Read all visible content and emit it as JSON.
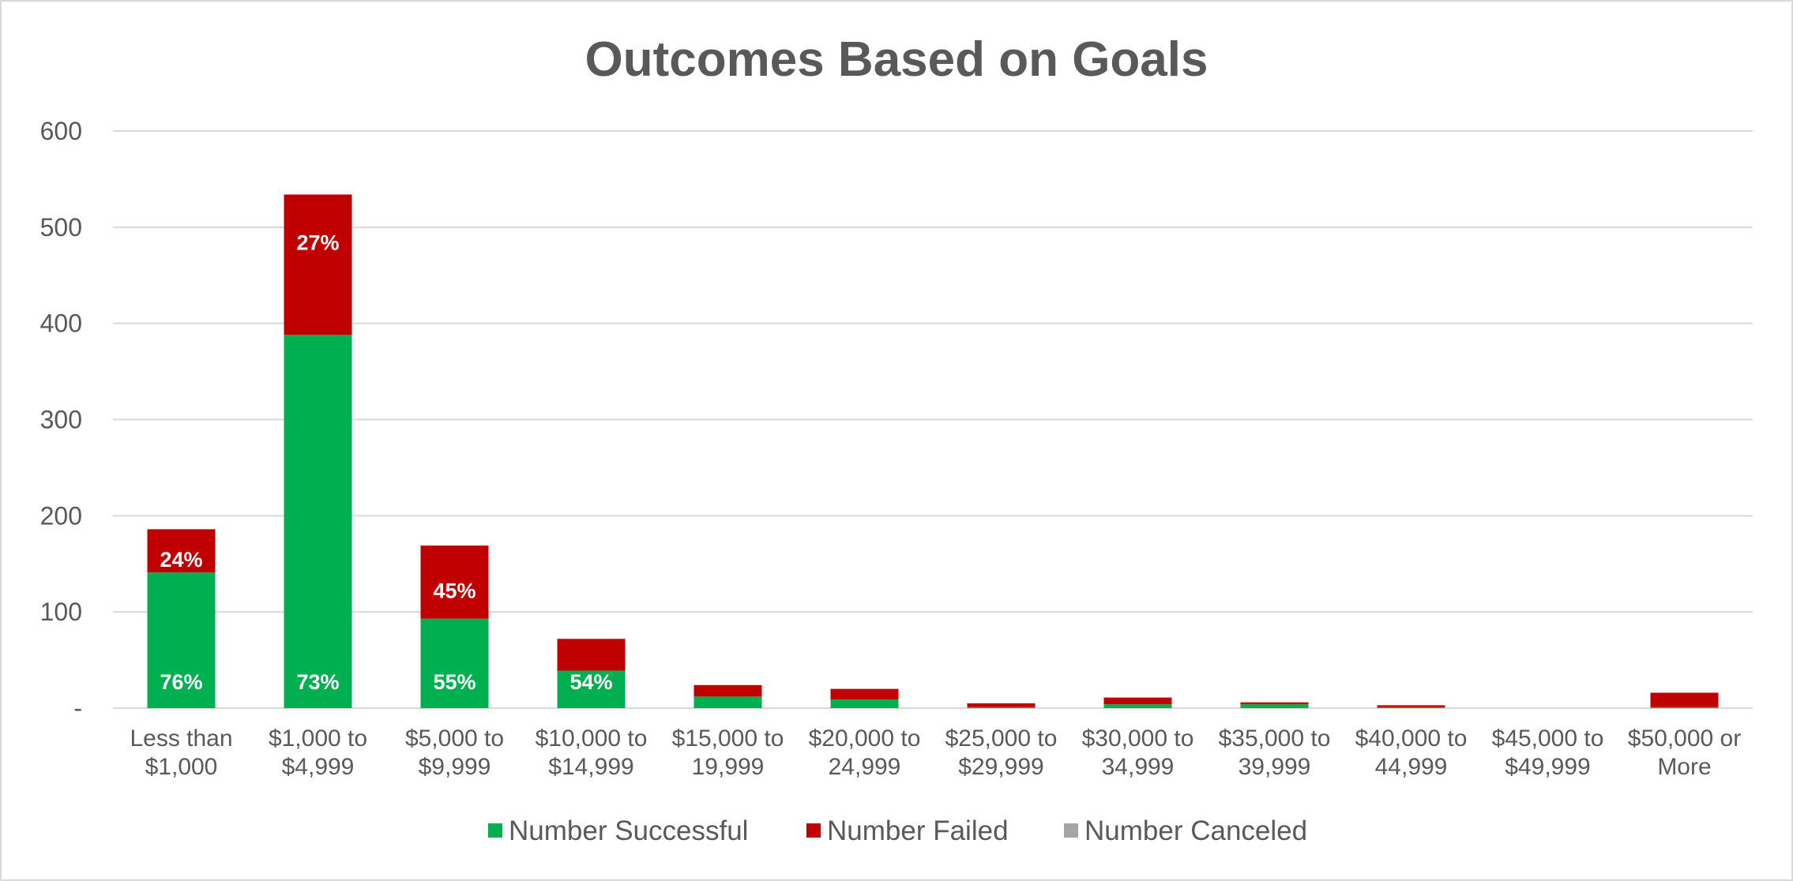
{
  "chart_data": {
    "type": "bar",
    "stacked": true,
    "title": "Outcomes Based on Goals",
    "xlabel": "",
    "ylabel": "",
    "ylim": [
      0,
      600
    ],
    "y_ticks": [
      {
        "value": 0,
        "label": "-"
      },
      {
        "value": 100,
        "label": "100"
      },
      {
        "value": 200,
        "label": "200"
      },
      {
        "value": 300,
        "label": "300"
      },
      {
        "value": 400,
        "label": "400"
      },
      {
        "value": 500,
        "label": "500"
      },
      {
        "value": 600,
        "label": "600"
      }
    ],
    "grid": true,
    "legend_position": "bottom",
    "categories": [
      [
        "Less than",
        "$1,000"
      ],
      [
        "$1,000 to",
        "$4,999"
      ],
      [
        "$5,000 to",
        "$9,999"
      ],
      [
        "$10,000 to",
        "$14,999"
      ],
      [
        "$15,000 to",
        "19,999"
      ],
      [
        "$20,000 to",
        "24,999"
      ],
      [
        "$25,000 to",
        "$29,999"
      ],
      [
        "$30,000 to",
        "34,999"
      ],
      [
        "$35,000 to",
        "39,999"
      ],
      [
        "$40,000 to",
        "44,999"
      ],
      [
        "$45,000 to",
        "$49,999"
      ],
      [
        "$50,000 or",
        "More"
      ]
    ],
    "series": [
      {
        "name": "Number Successful",
        "color": "#00b050",
        "values": [
          141,
          388,
          93,
          39,
          12,
          9,
          1,
          4,
          4,
          1,
          0,
          1
        ],
        "labels": [
          "76%",
          "73%",
          "55%",
          "54%",
          "",
          "",
          "",
          "",
          "",
          "",
          "",
          ""
        ]
      },
      {
        "name": "Number Failed",
        "color": "#c00000",
        "values": [
          45,
          146,
          76,
          33,
          12,
          11,
          4,
          7,
          2,
          2,
          0,
          15
        ],
        "labels": [
          "24%",
          "27%",
          "45%",
          "",
          "",
          "",
          "",
          "",
          "",
          "",
          "",
          ""
        ]
      },
      {
        "name": "Number Canceled",
        "color": "#a5a5a5",
        "values": [
          0,
          0,
          0,
          0,
          0,
          0,
          0,
          0,
          0,
          0,
          0,
          0
        ],
        "labels": [
          "",
          "",
          "",
          "",
          "",
          "",
          "",
          "",
          "",
          "",
          "",
          ""
        ]
      }
    ]
  }
}
